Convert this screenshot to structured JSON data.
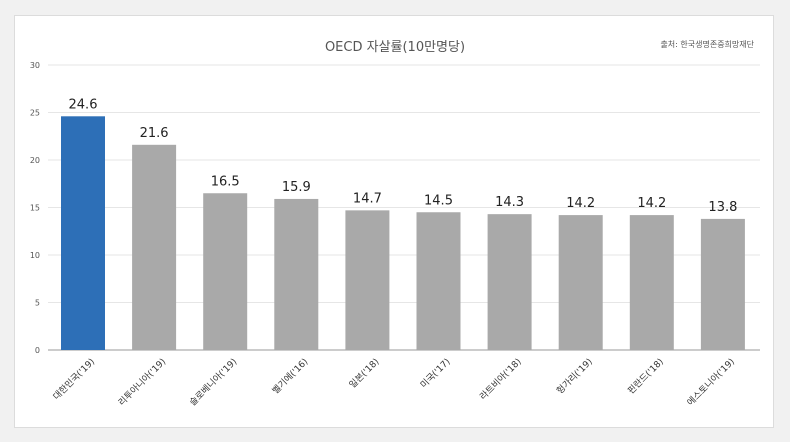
{
  "chart_data": {
    "type": "bar",
    "title": "OECD 자살률(10만명당)",
    "source": "출처: 한국생명존중희망재단",
    "categories": [
      "대한민국('19)",
      "리투아니아('19)",
      "슬로베니아('19)",
      "벨기에('16)",
      "일본('18)",
      "미국('17)",
      "라트비아('18)",
      "헝가리('19)",
      "핀란드('18)",
      "에스토니아('19)"
    ],
    "values": [
      24.6,
      21.6,
      16.5,
      15.9,
      14.7,
      14.5,
      14.3,
      14.2,
      14.2,
      13.8
    ],
    "value_labels": [
      "24.6",
      "21.6",
      "16.5",
      "15.9",
      "14.7",
      "14.5",
      "14.3",
      "14.2",
      "14.2",
      "13.8"
    ],
    "highlight_index": 0,
    "ylim": [
      0,
      30
    ],
    "yticks": [
      0,
      5,
      10,
      15,
      20,
      25,
      30
    ],
    "grid": true,
    "xlabel": "",
    "ylabel": "",
    "colors": {
      "highlight": "#2d6fb7",
      "bar": "#a9a9a9",
      "grid": "#e6e6e6",
      "axis": "#999999"
    }
  }
}
